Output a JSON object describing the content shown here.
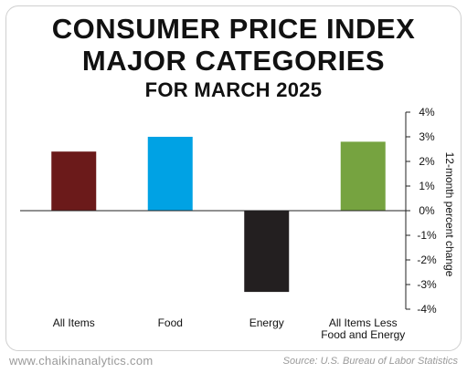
{
  "chart_data": {
    "type": "bar",
    "title": [
      "CONSUMER PRICE INDEX",
      "MAJOR CATEGORIES"
    ],
    "subtitle": "FOR MARCH 2025",
    "categories": [
      [
        "All Items"
      ],
      [
        "Food"
      ],
      [
        "Energy"
      ],
      [
        "All Items Less",
        "Food and Energy"
      ]
    ],
    "values": [
      2.4,
      3.0,
      -3.3,
      2.8
    ],
    "colors": [
      "#6b1a1a",
      "#00a2e4",
      "#231f20",
      "#76a340"
    ],
    "ylabel": "12-month percent change",
    "ylim": [
      -4,
      4
    ],
    "yticks": [
      4,
      3,
      2,
      1,
      0,
      -1,
      -2,
      -3,
      -4
    ],
    "ytick_labels": [
      "4%",
      "3%",
      "2%",
      "1%",
      "0%",
      "-1%",
      "-2%",
      "-3%",
      "-4%"
    ],
    "y_axis_side": "right",
    "grid": false
  },
  "footer": {
    "site": "www.chaikinanalytics.com",
    "source": "Source: U.S. Bureau of Labor Statistics"
  }
}
